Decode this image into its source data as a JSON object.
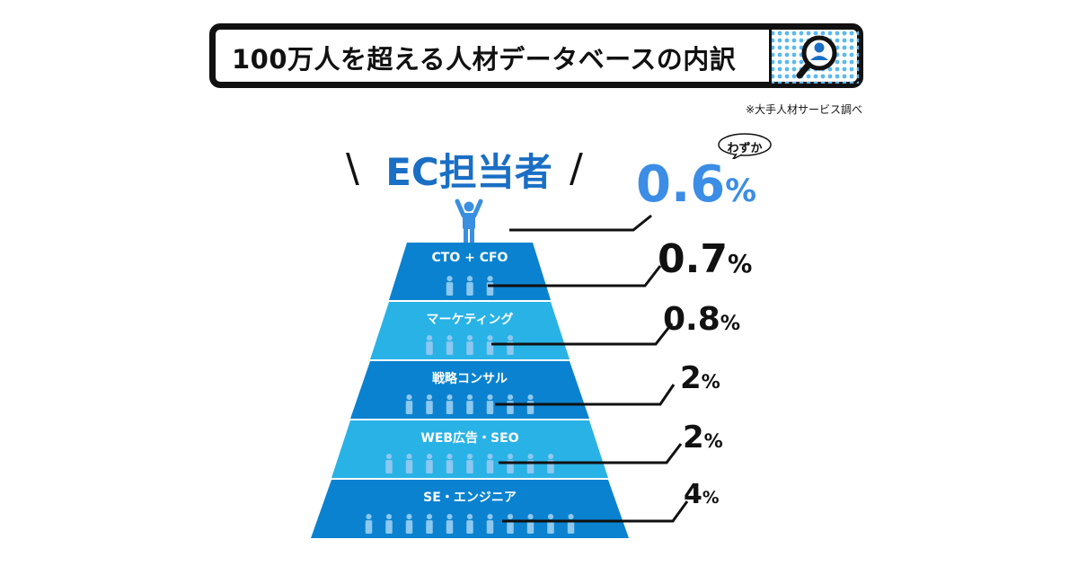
{
  "header": {
    "title": "100万人を超える人材データベースの内訳",
    "note": "※大手人材サービス調べ"
  },
  "highlight": {
    "label": "EC担当者",
    "bubble": "わずか",
    "color": "#1a6fc4"
  },
  "colors": {
    "tier_dark": "#0a82d0",
    "tier_light": "#29b2e6",
    "person": "#8cc8f0",
    "person_top": "#3a8fe0",
    "pct_highlight": "#3b8de6"
  },
  "chart_data": {
    "type": "pyramid",
    "title": "100万人を超える人材データベースの内訳",
    "categories": [
      "EC担当者",
      "CTO + CFO",
      "マーケティング",
      "戦略コンサル",
      "WEB広告・SEO",
      "SE・エンジニア"
    ],
    "values": [
      0.6,
      0.7,
      0.8,
      2,
      2,
      4
    ],
    "value_labels": [
      "0.6",
      "0.7",
      "0.8",
      "2",
      "2",
      "4"
    ],
    "unit": "%",
    "icon_counts": [
      1,
      3,
      5,
      7,
      9,
      11
    ]
  }
}
